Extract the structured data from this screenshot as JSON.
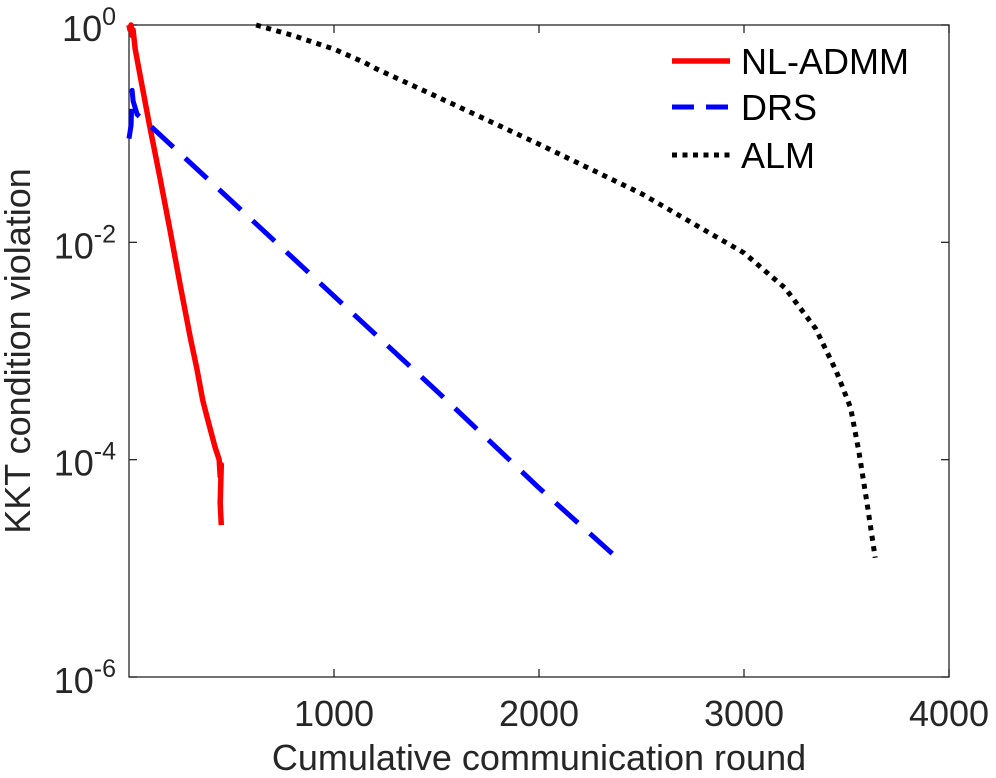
{
  "chart_data": {
    "type": "line",
    "title": "",
    "xlabel": "Cumulative communication round",
    "ylabel": "KKT condition violation",
    "xlim": [
      0,
      4000
    ],
    "ylim": [
      1e-06,
      1
    ],
    "yscale": "log",
    "xticks": [
      1000,
      2000,
      3000,
      4000
    ],
    "xtick_labels": [
      "1000",
      "2000",
      "3000",
      "4000"
    ],
    "yticks": [
      1e-06,
      0.0001,
      0.01,
      1
    ],
    "ytick_labels": [
      {
        "base": "10",
        "exp": "-6"
      },
      {
        "base": "10",
        "exp": "-4"
      },
      {
        "base": "10",
        "exp": "-2"
      },
      {
        "base": "10",
        "exp": "0"
      }
    ],
    "grid": false,
    "legend_position": "top-right",
    "series": [
      {
        "name": "NL-ADMM",
        "color": "#ff0000",
        "style": "solid",
        "x": [
          0,
          5,
          10,
          15,
          20,
          30,
          60,
          100,
          150,
          200,
          250,
          300,
          330,
          360,
          380,
          400,
          420,
          440,
          445,
          450,
          445,
          450
        ],
        "y": [
          1,
          0.9,
          1,
          0.8,
          0.9,
          0.6,
          0.3,
          0.12,
          0.04,
          0.013,
          0.004,
          0.0013,
          0.0007,
          0.00035,
          0.00025,
          0.00018,
          0.00013,
          0.0001,
          7e-05,
          9e-05,
          4e-05,
          2.5e-05
        ]
      },
      {
        "name": "DRS",
        "color": "#0000ff",
        "style": "dashed",
        "x": [
          0,
          10,
          15,
          20,
          40,
          100,
          500,
          1000,
          1500,
          2000,
          2380
        ],
        "y": [
          0.09,
          0.12,
          0.25,
          0.2,
          0.15,
          0.12,
          0.024,
          0.0032,
          0.00043,
          5.5e-05,
          1.25e-05
        ]
      },
      {
        "name": "ALM",
        "color": "#000000",
        "style": "dotted",
        "x": [
          620,
          800,
          1000,
          1150,
          1200,
          1500,
          2000,
          2500,
          3000,
          3200,
          3350,
          3450,
          3520,
          3560,
          3600,
          3640
        ],
        "y": [
          1,
          0.8,
          0.6,
          0.45,
          0.4,
          0.22,
          0.08,
          0.028,
          0.008,
          0.0038,
          0.0016,
          0.00065,
          0.0003,
          0.00012,
          4e-05,
          1.25e-05
        ]
      }
    ]
  }
}
